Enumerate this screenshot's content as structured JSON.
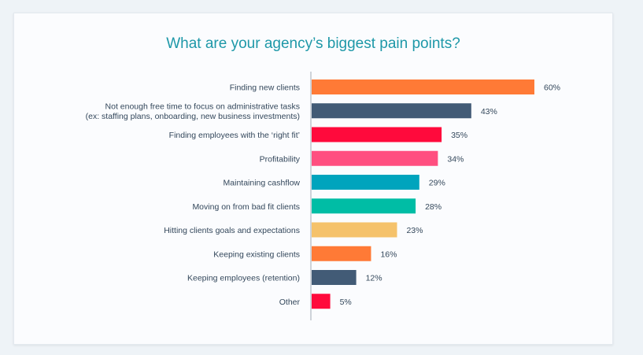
{
  "chart_data": {
    "type": "bar",
    "orientation": "horizontal",
    "title": "What are your agency’s biggest pain points?",
    "categories": [
      [
        "Finding new clients"
      ],
      [
        "Not enough free time to focus on administrative tasks",
        "(ex: staffing plans, onboarding, new business investments)"
      ],
      [
        "Finding employees with the ‘right fit’"
      ],
      [
        "Profitability"
      ],
      [
        "Maintaining cashflow"
      ],
      [
        "Moving on from bad fit clients"
      ],
      [
        "Hitting clients goals and expectations"
      ],
      [
        "Keeping existing clients"
      ],
      [
        "Keeping employees (retention)"
      ],
      [
        "Other"
      ]
    ],
    "values": [
      60,
      43,
      35,
      34,
      29,
      28,
      23,
      16,
      12,
      5
    ],
    "value_labels": [
      "60%",
      "43%",
      "35%",
      "34%",
      "29%",
      "28%",
      "23%",
      "16%",
      "12%",
      "5%"
    ],
    "colors": [
      "#ff7a36",
      "#425b76",
      "#ff0a3c",
      "#ff4f80",
      "#00a4bd",
      "#00bda5",
      "#f5c26b",
      "#ff7a36",
      "#425b76",
      "#ff0a3c"
    ],
    "xlim": [
      0,
      60
    ],
    "grid": false
  },
  "colors": {
    "title": "#1e98a8",
    "text": "#33475b",
    "axis": "#b0b8c1"
  }
}
